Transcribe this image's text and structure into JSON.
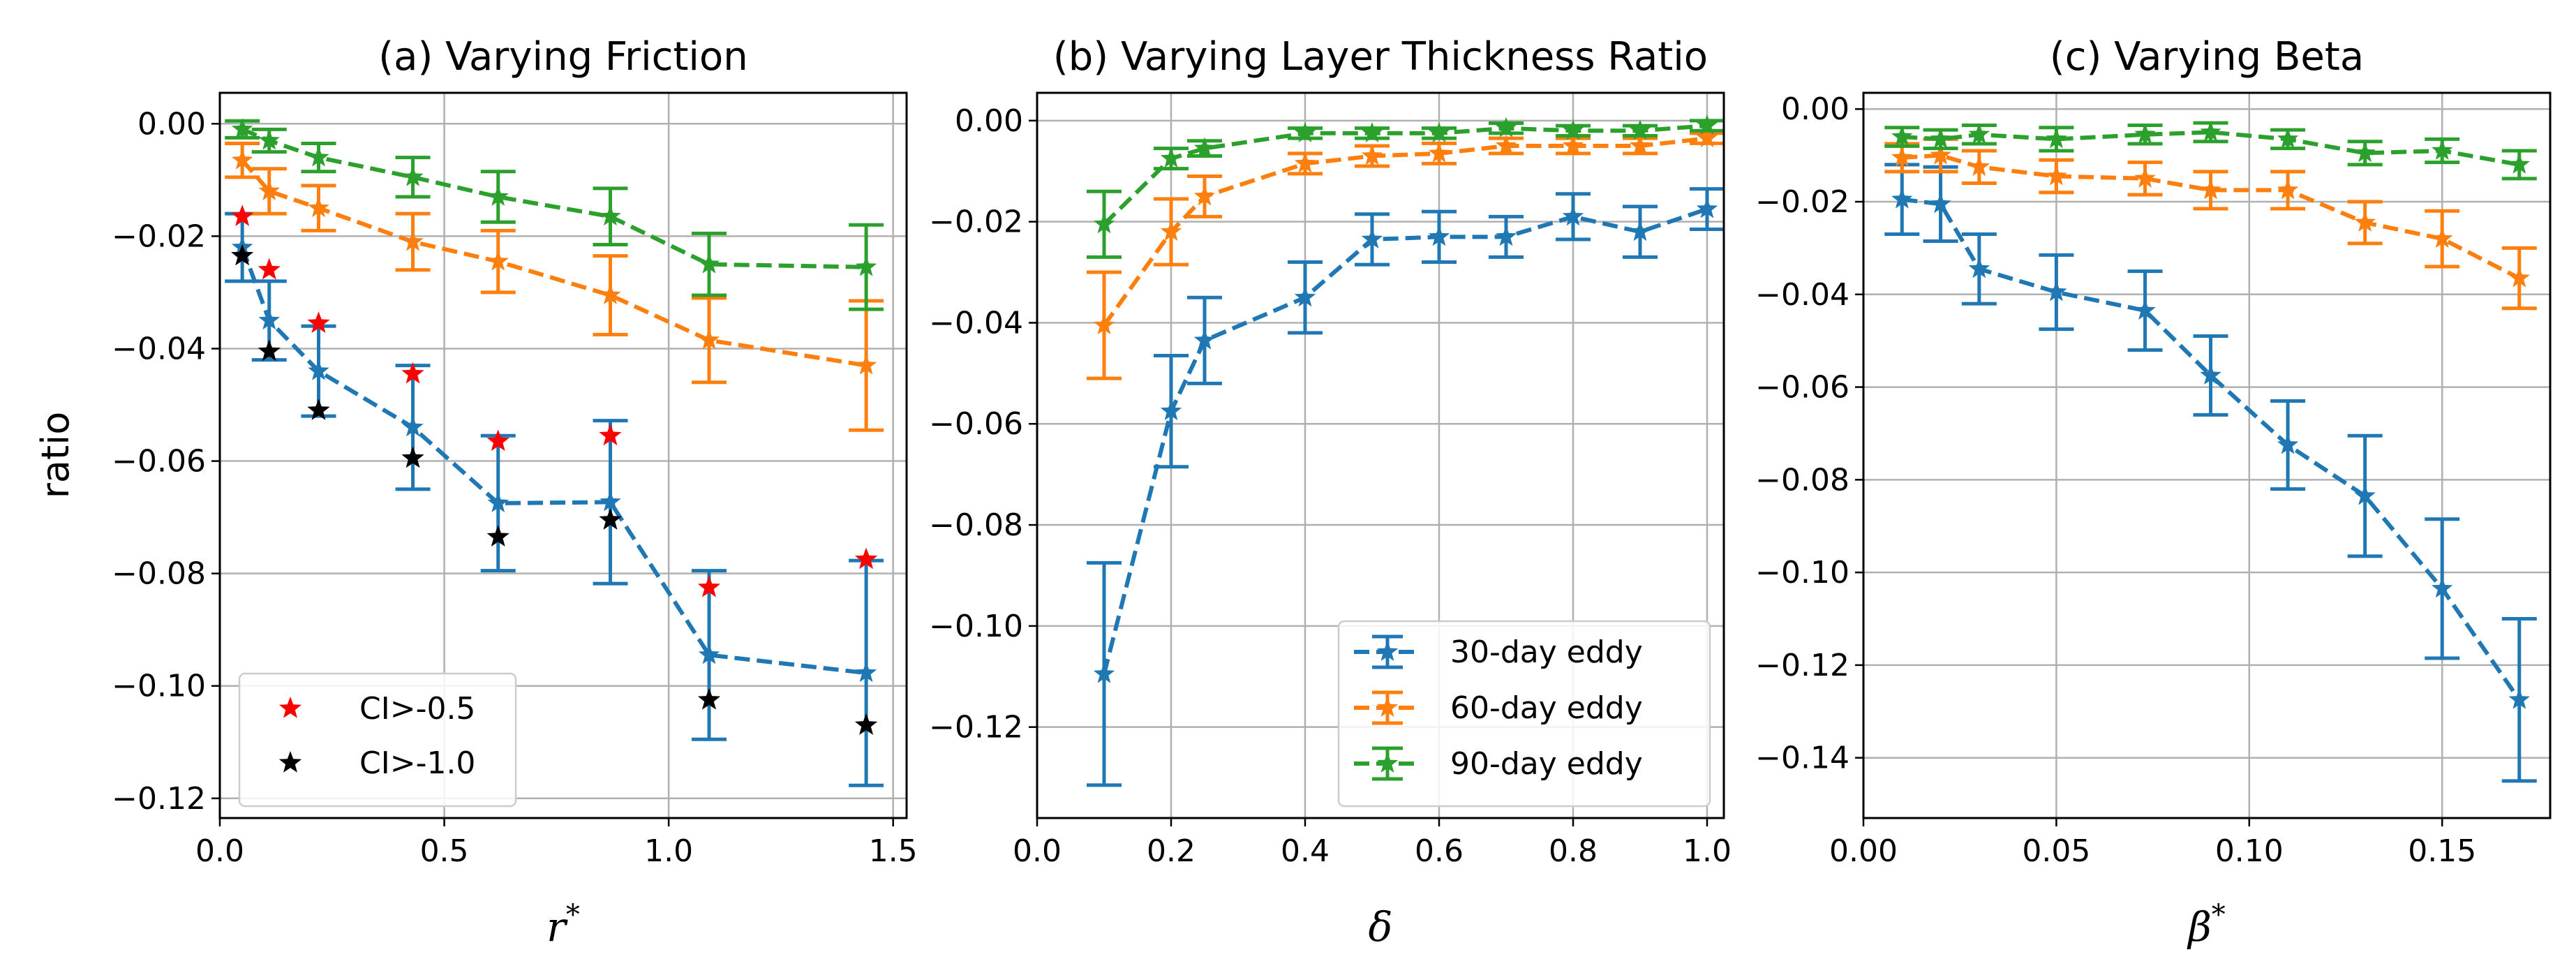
{
  "figure": {
    "ylabel": "ratio",
    "colors": {
      "s30": "#1f77b4",
      "s60": "#ff7f0e",
      "s90": "#2ca02c",
      "red": "#ff0000",
      "black": "#000000",
      "grid": "#b0b0b0"
    }
  },
  "chart_data": [
    {
      "id": "a",
      "type": "line",
      "title": "(a) Varying Friction",
      "xlabel": "r*",
      "xlim": [
        0,
        1.53
      ],
      "ylim": [
        -0.1235,
        0.0055
      ],
      "xticks": [
        0.0,
        0.5,
        1.0,
        1.5
      ],
      "xtick_labels": [
        "0.0",
        "0.5",
        "1.0",
        "1.5"
      ],
      "yticks": [
        0.0,
        -0.02,
        -0.04,
        -0.06,
        -0.08,
        -0.1,
        -0.12
      ],
      "ytick_labels": [
        "0.00",
        "−0.02",
        "−0.04",
        "−0.06",
        "−0.08",
        "−0.10",
        "−0.12"
      ],
      "x": [
        0.05,
        0.11,
        0.22,
        0.43,
        0.62,
        0.87,
        1.09,
        1.44
      ],
      "series": [
        {
          "name": "30-day eddy",
          "color_key": "s30",
          "values": [
            -0.022,
            -0.035,
            -0.044,
            -0.054,
            -0.0675,
            -0.0673,
            -0.0945,
            -0.0977
          ],
          "errors": [
            0.006,
            0.007,
            0.008,
            0.011,
            0.012,
            0.0145,
            0.015,
            0.02
          ]
        },
        {
          "name": "60-day eddy",
          "color_key": "s60",
          "values": [
            -0.0065,
            -0.012,
            -0.015,
            -0.021,
            -0.0245,
            -0.0305,
            -0.0385,
            -0.043
          ],
          "errors": [
            0.003,
            0.004,
            0.004,
            0.005,
            0.0055,
            0.007,
            0.0075,
            0.0115
          ]
        },
        {
          "name": "90-day eddy",
          "color_key": "s90",
          "values": [
            -0.001,
            -0.003,
            -0.006,
            -0.0095,
            -0.013,
            -0.0165,
            -0.025,
            -0.0255
          ],
          "errors": [
            0.0015,
            0.002,
            0.0025,
            0.0035,
            0.0045,
            0.005,
            0.0055,
            0.0075
          ]
        }
      ],
      "markers": [
        {
          "name": "CI>-0.5",
          "color_key": "red",
          "values": [
            -0.0165,
            -0.026,
            -0.0355,
            -0.0445,
            -0.0565,
            -0.0555,
            -0.0825,
            -0.0775
          ]
        },
        {
          "name": "CI>-1.0",
          "color_key": "black",
          "values": [
            -0.0235,
            -0.0405,
            -0.051,
            -0.0595,
            -0.0735,
            -0.0705,
            -0.1025,
            -0.107
          ]
        }
      ],
      "legend": {
        "location": "lower left",
        "entries": [
          "CI>-0.5",
          "CI>-1.0"
        ]
      }
    },
    {
      "id": "b",
      "type": "line",
      "title": "(b) Varying Layer Thickness Ratio",
      "xlabel": "δ",
      "xlim": [
        0,
        1.025
      ],
      "ylim": [
        -0.138,
        0.0055
      ],
      "xticks": [
        0.0,
        0.2,
        0.4,
        0.6,
        0.8,
        1.0
      ],
      "xtick_labels": [
        "0.0",
        "0.2",
        "0.4",
        "0.6",
        "0.8",
        "1.0"
      ],
      "yticks": [
        0.0,
        -0.02,
        -0.04,
        -0.06,
        -0.08,
        -0.1,
        -0.12
      ],
      "ytick_labels": [
        "0.00",
        "−0.02",
        "−0.04",
        "−0.06",
        "−0.08",
        "−0.10",
        "−0.12"
      ],
      "x": [
        0.1,
        0.2,
        0.25,
        0.4,
        0.5,
        0.6,
        0.7,
        0.8,
        0.9,
        1.0
      ],
      "series": [
        {
          "name": "30-day eddy",
          "color_key": "s30",
          "values": [
            -0.1095,
            -0.0575,
            -0.0435,
            -0.035,
            -0.0235,
            -0.023,
            -0.023,
            -0.019,
            -0.022,
            -0.0175
          ],
          "errors": [
            0.022,
            0.011,
            0.0085,
            0.007,
            0.005,
            0.005,
            0.004,
            0.0045,
            0.005,
            0.004
          ]
        },
        {
          "name": "60-day eddy",
          "color_key": "s60",
          "values": [
            -0.0405,
            -0.022,
            -0.015,
            -0.0085,
            -0.007,
            -0.0065,
            -0.005,
            -0.005,
            -0.005,
            -0.0035
          ],
          "errors": [
            0.0105,
            0.0065,
            0.004,
            0.002,
            0.002,
            0.002,
            0.0015,
            0.0015,
            0.0015,
            0.001
          ]
        },
        {
          "name": "90-day eddy",
          "color_key": "s90",
          "values": [
            -0.0205,
            -0.0075,
            -0.0055,
            -0.0025,
            -0.0025,
            -0.0025,
            -0.0015,
            -0.002,
            -0.002,
            -0.001
          ],
          "errors": [
            0.0065,
            0.002,
            0.0015,
            0.001,
            0.001,
            0.001,
            0.001,
            0.001,
            0.001,
            0.001
          ]
        }
      ],
      "legend": {
        "location": "lower right",
        "entries": [
          "30-day eddy",
          "60-day eddy",
          "90-day eddy"
        ]
      }
    },
    {
      "id": "c",
      "type": "line",
      "title": "(c) Varying Beta",
      "xlabel": "β*",
      "xlim": [
        0,
        0.178
      ],
      "ylim": [
        -0.153,
        0.0035
      ],
      "xticks": [
        0.0,
        0.05,
        0.1,
        0.15
      ],
      "xtick_labels": [
        "0.00",
        "0.05",
        "0.10",
        "0.15"
      ],
      "yticks": [
        0.0,
        -0.02,
        -0.04,
        -0.06,
        -0.08,
        -0.1,
        -0.12,
        -0.14
      ],
      "ytick_labels": [
        "0.00",
        "−0.02",
        "−0.04",
        "−0.06",
        "−0.08",
        "−0.10",
        "−0.12",
        "−0.14"
      ],
      "x": [
        0.01,
        0.02,
        0.03,
        0.05,
        0.073,
        0.09,
        0.11,
        0.13,
        0.15,
        0.17
      ],
      "series": [
        {
          "name": "30-day eddy",
          "color_key": "s30",
          "values": [
            -0.0195,
            -0.0205,
            -0.0345,
            -0.0395,
            -0.0435,
            -0.0575,
            -0.0725,
            -0.0835,
            -0.1035,
            -0.1275
          ],
          "errors": [
            0.0075,
            0.008,
            0.0075,
            0.008,
            0.0085,
            0.0085,
            0.0095,
            0.013,
            0.015,
            0.0175
          ]
        },
        {
          "name": "60-day eddy",
          "color_key": "s60",
          "values": [
            -0.0105,
            -0.01,
            -0.0125,
            -0.0145,
            -0.015,
            -0.0175,
            -0.0175,
            -0.0245,
            -0.028,
            -0.0365
          ],
          "errors": [
            0.003,
            0.0035,
            0.0035,
            0.0035,
            0.0035,
            0.004,
            0.004,
            0.0045,
            0.006,
            0.0065
          ]
        },
        {
          "name": "90-day eddy",
          "color_key": "s90",
          "values": [
            -0.006,
            -0.0065,
            -0.0055,
            -0.0065,
            -0.0055,
            -0.005,
            -0.0065,
            -0.0095,
            -0.009,
            -0.012
          ],
          "errors": [
            0.002,
            0.002,
            0.002,
            0.0025,
            0.002,
            0.002,
            0.002,
            0.0025,
            0.0025,
            0.003
          ]
        }
      ]
    }
  ]
}
